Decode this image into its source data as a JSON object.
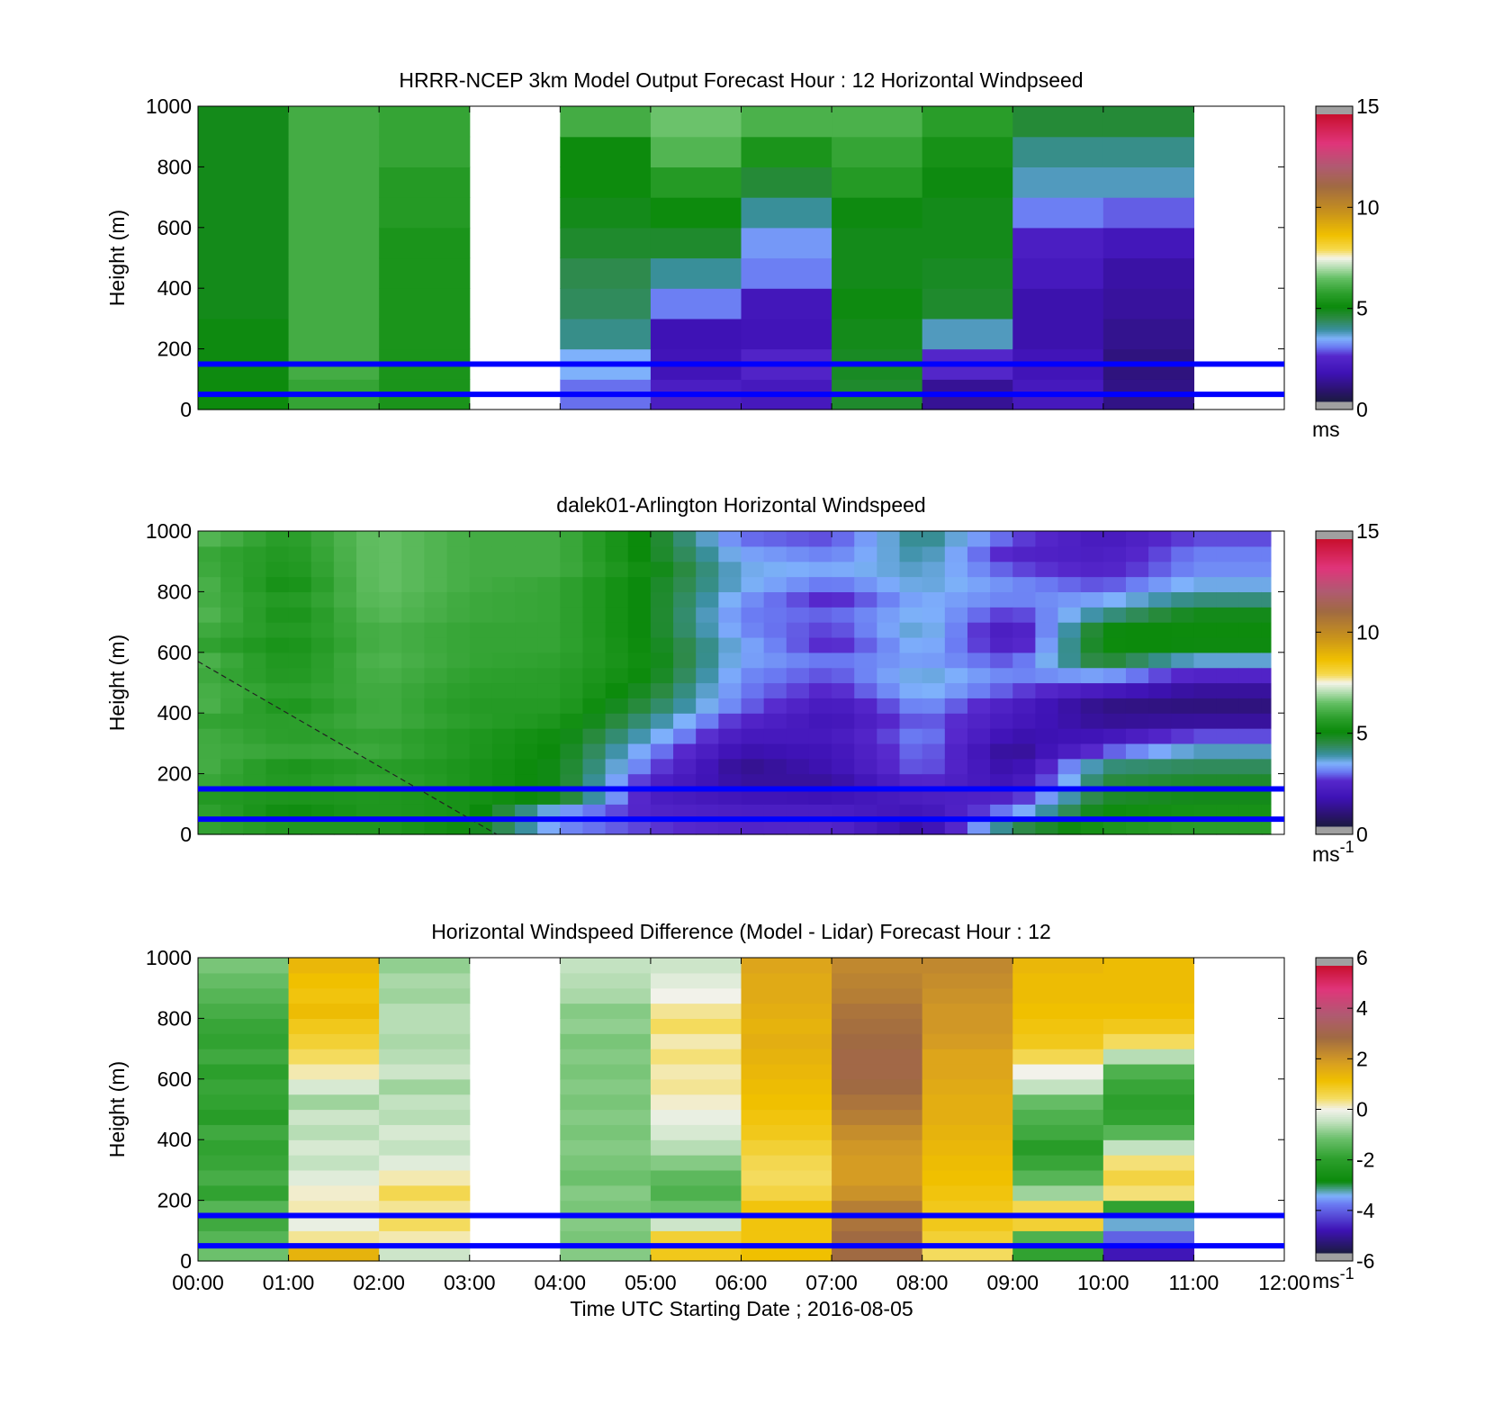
{
  "figure": {
    "background": "#ffffff"
  },
  "panels": [
    {
      "title": "HRRR-NCEP 3km Model Output   Forecast Hour : 12 Horizontal Windpseed",
      "ylabel": "Height (m)",
      "colorbar_unit": "ms",
      "colorbar_unit_sup": "",
      "show_xticklabels": false
    },
    {
      "title": "dalek01-Arlington  Horizontal Windspeed",
      "ylabel": "Height (m)",
      "colorbar_unit": "ms",
      "colorbar_unit_sup": "-1",
      "show_xticklabels": false
    },
    {
      "title": "Horizontal Windspeed Difference (Model - Lidar) Forecast Hour : 12",
      "ylabel": "Height (m)",
      "colorbar_unit": "ms",
      "colorbar_unit_sup": "-1",
      "show_xticklabels": true
    }
  ],
  "shared_x": {
    "xlabel": "Time UTC  Starting Date ; 2016-08-05",
    "tick_labels": [
      "00:00",
      "01:00",
      "02:00",
      "03:00",
      "04:00",
      "05:00",
      "06:00",
      "07:00",
      "08:00",
      "09:00",
      "10:00",
      "11:00",
      "12:00"
    ]
  },
  "chart_data": [
    {
      "type": "heatmap",
      "title": "HRRR-NCEP 3km Model Output   Forecast Hour : 12 Horizontal Windpseed",
      "xlabel": "",
      "ylabel": "Height (m)",
      "xlim_hours": [
        0,
        12
      ],
      "ylim": [
        0,
        1000
      ],
      "y_ticks": [
        0,
        200,
        400,
        600,
        800,
        1000
      ],
      "colorbar": {
        "vmin": 0,
        "vmax": 15,
        "ticks": [
          0,
          5,
          10,
          15
        ],
        "unit": "ms"
      },
      "reference_lines_m": [
        50,
        150
      ],
      "cell_height_m": 100,
      "columns": [
        {
          "hour": 0,
          "values": [
            5.0,
            4.9,
            4.9,
            4.8,
            4.8,
            4.8,
            4.8,
            4.8,
            4.8,
            4.8
          ]
        },
        {
          "hour": 1,
          "values": [
            5.8,
            6.0,
            6.0,
            6.0,
            6.0,
            6.0,
            6.0,
            6.0,
            6.0,
            6.0
          ]
        },
        {
          "hour": 2,
          "values": [
            5.3,
            5.3,
            5.3,
            5.3,
            5.3,
            5.3,
            5.5,
            5.5,
            5.8,
            5.8
          ]
        },
        {
          "hour": 3,
          "values": [
            null,
            null,
            null,
            null,
            null,
            null,
            null,
            null,
            null,
            null
          ]
        },
        {
          "hour": 4,
          "values": [
            2.8,
            3.3,
            3.9,
            4.2,
            4.3,
            4.6,
            4.8,
            5.0,
            5.0,
            6.0
          ]
        },
        {
          "hour": 5,
          "values": [
            2.0,
            1.6,
            1.5,
            2.9,
            3.8,
            4.6,
            5.0,
            5.5,
            6.2,
            6.5
          ]
        },
        {
          "hour": 6,
          "values": [
            1.8,
            2.2,
            1.6,
            1.7,
            2.9,
            3.1,
            3.8,
            4.5,
            5.3,
            6.1
          ]
        },
        {
          "hour": 7,
          "values": [
            4.6,
            4.7,
            4.8,
            4.9,
            4.8,
            4.8,
            4.9,
            5.5,
            5.8,
            6.1
          ]
        },
        {
          "hour": 8,
          "values": [
            1.1,
            2.3,
            3.6,
            4.6,
            4.7,
            4.8,
            4.8,
            4.9,
            5.2,
            5.6
          ]
        },
        {
          "hour": 9,
          "values": [
            1.8,
            1.6,
            1.4,
            1.4,
            1.8,
            2.0,
            2.9,
            3.6,
            3.9,
            4.5
          ]
        },
        {
          "hour": 10,
          "values": [
            0.9,
            0.8,
            1.0,
            1.2,
            1.3,
            1.7,
            2.7,
            3.6,
            3.9,
            4.5
          ]
        },
        {
          "hour": 11,
          "values": [
            null,
            null,
            null,
            null,
            null,
            null,
            null,
            null,
            null,
            null
          ]
        }
      ]
    },
    {
      "type": "heatmap",
      "title": "dalek01-Arlington  Horizontal Windspeed",
      "xlabel": "",
      "ylabel": "Height (m)",
      "xlim_hours": [
        0,
        12
      ],
      "ylim": [
        0,
        1000
      ],
      "y_ticks": [
        0,
        200,
        400,
        600,
        800,
        1000
      ],
      "colorbar": {
        "vmin": 0,
        "vmax": 15,
        "ticks": [
          0,
          5,
          10,
          15
        ],
        "unit": "ms-1"
      },
      "reference_lines_m": [
        50,
        150
      ],
      "data_end_hour": 11.85,
      "cell_height_m": 50,
      "profiles": [
        {
          "hour": 0.0,
          "values": [
            5.8,
            5.8,
            5.5,
            5.9,
            6.1,
            6.0,
            6.0,
            5.8,
            6.2,
            6.1,
            6.0,
            6.2,
            5.8,
            6.0,
            6.3,
            6.1,
            6.2,
            6.0,
            5.9,
            6.3
          ]
        },
        {
          "hour": 1.0,
          "values": [
            5.4,
            5.0,
            5.3,
            5.4,
            5.3,
            5.8,
            5.6,
            5.6,
            5.3,
            5.6,
            5.4,
            5.3,
            5.2,
            5.4,
            5.2,
            5.4,
            5.1,
            5.3,
            5.4,
            5.5
          ]
        },
        {
          "hour": 2.0,
          "values": [
            5.4,
            5.4,
            5.4,
            5.8,
            5.6,
            5.9,
            5.8,
            6.0,
            6.0,
            6.0,
            6.1,
            6.2,
            6.1,
            6.1,
            6.3,
            6.4,
            6.5,
            6.5,
            6.5,
            6.5
          ]
        },
        {
          "hour": 3.0,
          "values": [
            5.0,
            5.2,
            5.2,
            5.3,
            5.3,
            5.4,
            5.4,
            5.6,
            5.5,
            5.6,
            5.7,
            5.8,
            5.8,
            5.8,
            5.9,
            5.9,
            6.0,
            6.0,
            6.0,
            6.0
          ]
        },
        {
          "hour": 4.0,
          "values": [
            3.0,
            3.2,
            4.8,
            4.8,
            4.8,
            4.9,
            5.0,
            5.3,
            5.5,
            5.6,
            5.6,
            5.7,
            5.8,
            5.8,
            5.8,
            5.8,
            5.8,
            6.0,
            6.0,
            6.0
          ]
        },
        {
          "hour": 5.0,
          "values": [
            2.5,
            2.2,
            2.0,
            2.2,
            2.7,
            3.0,
            3.5,
            3.9,
            4.3,
            4.6,
            4.9,
            5.0,
            4.9,
            4.8,
            4.8,
            4.8,
            4.8,
            5.0,
            4.8,
            4.8
          ]
        },
        {
          "hour": 6.0,
          "values": [
            2.2,
            2.0,
            1.6,
            1.2,
            1.0,
            1.4,
            1.8,
            2.3,
            2.8,
            2.9,
            3.0,
            3.2,
            3.3,
            3.0,
            2.9,
            3.1,
            3.4,
            3.4,
            3.2,
            2.8
          ]
        },
        {
          "hour": 7.0,
          "values": [
            2.3,
            2.0,
            1.5,
            1.2,
            1.5,
            1.6,
            1.8,
            1.6,
            1.8,
            2.3,
            2.6,
            2.8,
            2.3,
            2.5,
            2.7,
            2.3,
            2.8,
            3.2,
            2.9,
            2.6
          ]
        },
        {
          "hour": 8.0,
          "values": [
            1.2,
            1.6,
            2.0,
            2.4,
            2.8,
            2.9,
            3.0,
            2.8,
            3.1,
            3.4,
            3.5,
            3.2,
            3.4,
            3.6,
            3.4,
            3.3,
            3.5,
            3.6,
            3.8,
            4.0
          ]
        },
        {
          "hour": 9.0,
          "values": [
            4.2,
            3.0,
            2.2,
            1.5,
            1.2,
            1.0,
            1.4,
            1.8,
            2.0,
            2.6,
            2.9,
            2.6,
            2.0,
            1.8,
            2.4,
            2.9,
            3.0,
            2.6,
            2.2,
            2.6
          ]
        },
        {
          "hour": 10.0,
          "values": [
            5.3,
            5.0,
            4.6,
            4.4,
            4.0,
            2.6,
            1.6,
            1.1,
            0.9,
            1.8,
            3.2,
            4.6,
            5.0,
            4.9,
            3.9,
            3.2,
            2.6,
            2.2,
            2.0,
            1.8
          ]
        },
        {
          "hour": 11.0,
          "values": [
            5.6,
            5.2,
            4.8,
            4.6,
            4.2,
            3.6,
            2.6,
            1.2,
            0.8,
            1.2,
            2.2,
            3.5,
            4.9,
            5.0,
            4.8,
            4.0,
            3.4,
            3.0,
            2.9,
            2.6
          ]
        }
      ],
      "diagonal_dashed_line": {
        "from": {
          "hour": 0.0,
          "height_m": 570
        },
        "to": {
          "hour": 3.3,
          "height_m": 0
        }
      }
    },
    {
      "type": "heatmap",
      "title": "Horizontal Windspeed Difference (Model - Lidar) Forecast Hour : 12",
      "xlabel": "Time UTC  Starting Date ; 2016-08-05",
      "ylabel": "Height (m)",
      "xlim_hours": [
        0,
        12
      ],
      "ylim": [
        0,
        1000
      ],
      "y_ticks": [
        0,
        200,
        400,
        600,
        800,
        1000
      ],
      "x_tick_labels": [
        "00:00",
        "01:00",
        "02:00",
        "03:00",
        "04:00",
        "05:00",
        "06:00",
        "07:00",
        "08:00",
        "09:00",
        "10:00",
        "11:00",
        "12:00"
      ],
      "colorbar": {
        "vmin": -6,
        "vmax": 6,
        "ticks": [
          -6,
          -4,
          -2,
          0,
          2,
          4,
          6
        ],
        "unit": "ms-1"
      },
      "reference_lines_m": [
        50,
        150
      ],
      "cell_height_m": 50,
      "columns": [
        {
          "hour": 0,
          "values": [
            -1.2,
            -1.5,
            -1.8,
            -1.5,
            -2.0,
            -1.7,
            -1.9,
            -2.0,
            -1.8,
            -2.2,
            -2.0,
            -1.9,
            -2.1,
            -1.8,
            -2.0,
            -1.9,
            -1.7,
            -1.5,
            -1.3,
            -1.1
          ]
        },
        {
          "hour": 1,
          "values": [
            1.5,
            0.3,
            -0.1,
            0.2,
            0.1,
            -0.2,
            -0.5,
            -0.3,
            -0.6,
            -0.4,
            -0.8,
            -0.3,
            0.2,
            0.5,
            0.8,
            1.0,
            1.3,
            1.1,
            1.2,
            1.4
          ]
        },
        {
          "hour": 2,
          "values": [
            -0.4,
            0.2,
            0.5,
            0.3,
            0.6,
            0.2,
            -0.2,
            -0.5,
            -0.3,
            -0.6,
            -0.5,
            -0.8,
            -0.4,
            -0.6,
            -0.7,
            -0.6,
            -0.6,
            -0.8,
            -0.7,
            -0.9
          ]
        },
        {
          "hour": 3,
          "values": [
            null,
            null,
            null,
            null,
            null,
            null,
            null,
            null,
            null,
            null,
            null,
            null,
            null,
            null,
            null,
            null,
            null,
            null,
            null,
            null
          ]
        },
        {
          "hour": 4,
          "values": [
            -1.0,
            -1.1,
            -1.0,
            -1.1,
            -1.0,
            -1.2,
            -1.1,
            -1.0,
            -1.1,
            -1.0,
            -1.1,
            -1.0,
            -1.1,
            -1.0,
            -1.1,
            -0.9,
            -1.0,
            -0.7,
            -0.6,
            -0.5
          ]
        },
        {
          "hour": 5,
          "values": [
            1.0,
            0.8,
            -0.4,
            -1.2,
            -1.6,
            -1.4,
            -1.0,
            -0.6,
            -0.3,
            -0.1,
            0.1,
            0.3,
            0.2,
            0.4,
            0.2,
            0.5,
            0.3,
            0.0,
            -0.2,
            -0.4
          ]
        },
        {
          "hour": 6,
          "values": [
            1.2,
            1.1,
            1.1,
            1.1,
            0.7,
            0.5,
            0.6,
            0.8,
            1.0,
            1.1,
            1.2,
            1.3,
            1.4,
            1.5,
            1.6,
            1.5,
            1.6,
            1.7,
            1.7,
            1.8
          ]
        },
        {
          "hour": 7,
          "values": [
            3.0,
            3.0,
            2.8,
            2.6,
            2.2,
            2.0,
            2.0,
            2.1,
            2.3,
            2.6,
            2.8,
            3.0,
            3.1,
            3.1,
            3.0,
            2.9,
            2.8,
            2.6,
            2.5,
            2.4
          ]
        },
        {
          "hour": 8,
          "values": [
            0.5,
            0.8,
            1.0,
            1.0,
            1.1,
            1.2,
            1.3,
            1.4,
            1.5,
            1.6,
            1.6,
            1.7,
            1.8,
            1.8,
            2.0,
            2.1,
            2.1,
            2.2,
            2.3,
            2.4
          ]
        },
        {
          "hour": 9,
          "values": [
            -2.0,
            -1.6,
            0.8,
            0.6,
            -0.8,
            -1.5,
            -1.9,
            -2.2,
            -1.8,
            -1.6,
            -1.3,
            -0.5,
            0.0,
            0.6,
            1.0,
            1.1,
            1.2,
            1.3,
            1.3,
            1.4
          ]
        },
        {
          "hour": 10,
          "values": [
            -5.0,
            -4.2,
            -3.5,
            -2.0,
            0.4,
            0.7,
            0.4,
            -0.5,
            -1.5,
            -2.0,
            -2.1,
            -1.9,
            -1.6,
            -0.6,
            0.5,
            1.0,
            1.2,
            1.3,
            1.3,
            1.3
          ]
        },
        {
          "hour": 11,
          "values": [
            null,
            null,
            null,
            null,
            null,
            null,
            null,
            null,
            null,
            null,
            null,
            null,
            null,
            null,
            null,
            null,
            null,
            null,
            null,
            null
          ]
        }
      ]
    }
  ],
  "colors": {
    "reference_line": "#0000ff",
    "nan_gray": "#a0a0a0",
    "speed_colormap": [
      [
        0.0,
        "#1b1b40"
      ],
      [
        0.04,
        "#2b136e"
      ],
      [
        0.1,
        "#3e12b5"
      ],
      [
        0.16,
        "#5628cc"
      ],
      [
        0.19,
        "#6a79f2"
      ],
      [
        0.22,
        "#7eb1fb"
      ],
      [
        0.25,
        "#3a8fa0"
      ],
      [
        0.29,
        "#2d8a46"
      ],
      [
        0.33,
        "#0b8a0b"
      ],
      [
        0.38,
        "#2ea02e"
      ],
      [
        0.43,
        "#64bf64"
      ],
      [
        0.47,
        "#b8dfb5"
      ],
      [
        0.5,
        "#f4f4e8"
      ],
      [
        0.53,
        "#f6d94e"
      ],
      [
        0.58,
        "#f0c000"
      ],
      [
        0.66,
        "#c8921c"
      ],
      [
        0.75,
        "#a06a42"
      ],
      [
        0.82,
        "#b05a72"
      ],
      [
        0.9,
        "#e0357a"
      ],
      [
        1.0,
        "#c8102e"
      ]
    ],
    "diff_colormap": [
      [
        0.0,
        "#1b1b40"
      ],
      [
        0.08,
        "#3e12b5"
      ],
      [
        0.17,
        "#6a79f2"
      ],
      [
        0.2,
        "#7eb1fb"
      ],
      [
        0.25,
        "#0b8a0b"
      ],
      [
        0.33,
        "#2ea02e"
      ],
      [
        0.4,
        "#6cc06c"
      ],
      [
        0.46,
        "#c6e3c3"
      ],
      [
        0.5,
        "#f2f2ea"
      ],
      [
        0.54,
        "#f4dc60"
      ],
      [
        0.6,
        "#f0c000"
      ],
      [
        0.66,
        "#d9a020"
      ],
      [
        0.75,
        "#a06a42"
      ],
      [
        0.83,
        "#b05a72"
      ],
      [
        0.92,
        "#e0357a"
      ],
      [
        1.0,
        "#c8102e"
      ]
    ]
  }
}
